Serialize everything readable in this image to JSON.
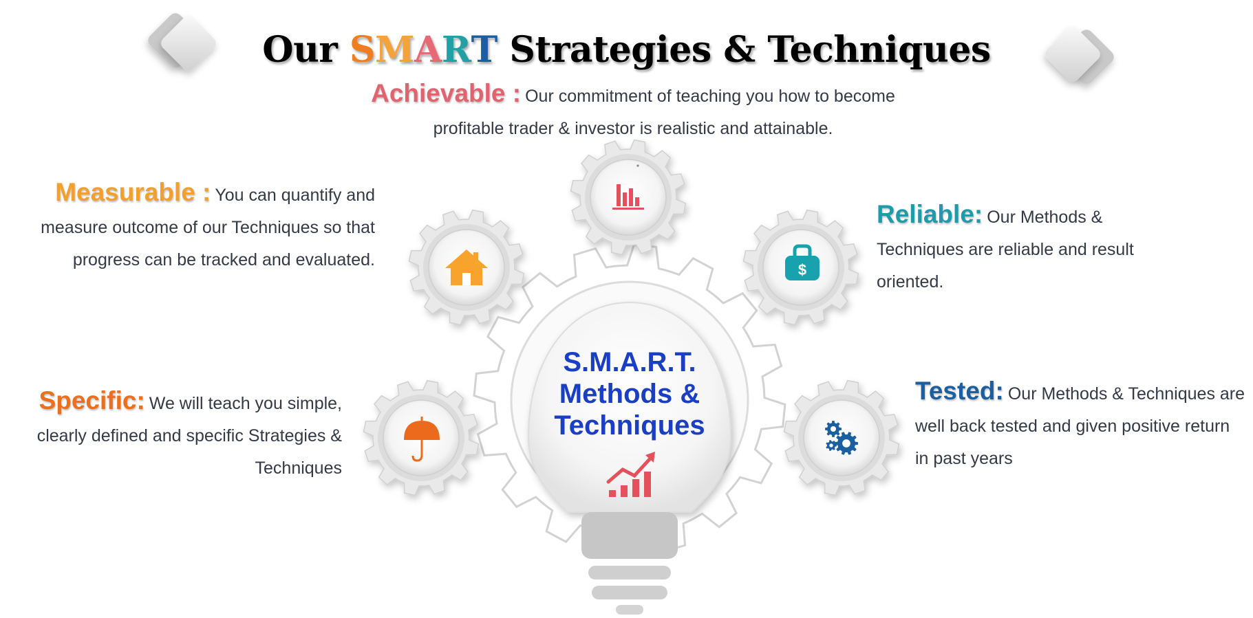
{
  "title": {
    "prefix": "Our",
    "smart_letters": [
      "S",
      "M",
      "A",
      "R",
      "T"
    ],
    "suffix": "Strategies & Techniques"
  },
  "center": {
    "line1": "S.M.A.R.T.",
    "line2": "Methods &",
    "line3": "Techniques"
  },
  "items": {
    "achievable": {
      "heading": "Achievable :",
      "text": "Our commitment of teaching you how to become profitable trader & investor is realistic and attainable."
    },
    "measurable": {
      "heading": "Measurable :",
      "text": "You can quantify and measure outcome of our Techniques so that progress can be tracked and evaluated."
    },
    "specific": {
      "heading": "Specific:",
      "text": "We will teach you simple, clearly defined and specific Strategies & Techniques"
    },
    "reliable": {
      "heading": "Reliable:",
      "text": "Our Methods & Techniques are reliable and result oriented."
    },
    "tested": {
      "heading": "Tested:",
      "text": "Our Methods & Techniques are well back tested and given positive return in past years"
    }
  },
  "icons": {
    "achievable": "bar-chart-icon",
    "measurable": "house-icon",
    "specific": "umbrella-icon",
    "reliable": "money-bag-icon",
    "tested": "gears-icon",
    "center": "growth-chart-icon"
  },
  "colors": {
    "smart_letters": [
      "#f07d1e",
      "#f3a33a",
      "#e66a75",
      "#23a0a6",
      "#1b5fa0"
    ],
    "center_text": "#1a3fc2",
    "icon_red": "#e4515c",
    "icon_orange": "#f7a32c",
    "icon_umbrella": "#ec6a1c",
    "icon_teal": "#17a2ae",
    "icon_blue": "#1b5fa0"
  }
}
